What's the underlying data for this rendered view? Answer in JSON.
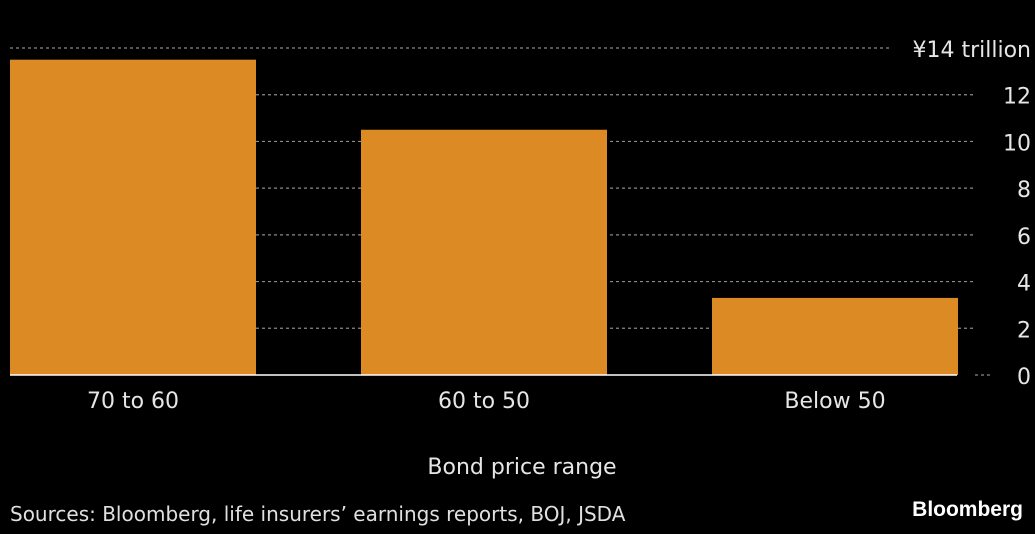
{
  "chart_data": {
    "type": "bar",
    "title": "",
    "categories": [
      "70 to 60",
      "60 to 50",
      "Below 50"
    ],
    "values": [
      13.5,
      10.5,
      3.3
    ],
    "xlabel": "Bond price range",
    "ylabel": "",
    "ylim": [
      0,
      14
    ],
    "yticks": [
      0,
      2,
      4,
      6,
      8,
      10,
      12,
      14
    ],
    "ytick_labels": [
      "0",
      "2",
      "4",
      "6",
      "8",
      "10",
      "12",
      "¥14 trillion"
    ],
    "grid": true,
    "bar_color": "#db8a24"
  },
  "footer": {
    "source": "Sources: Bloomberg, life insurers’ earnings reports, BOJ, JSDA",
    "logo": "Bloomberg"
  }
}
